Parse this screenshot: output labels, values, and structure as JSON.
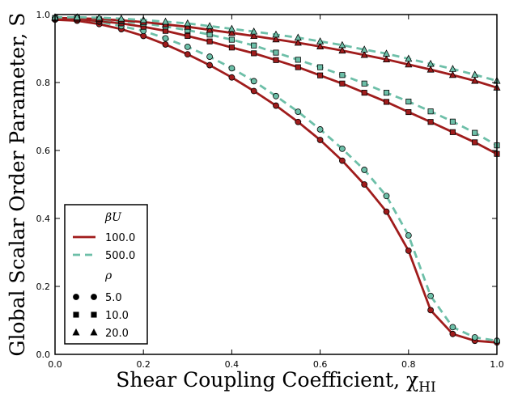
{
  "chart_data": {
    "type": "line",
    "xlabel": "Shear Coupling Coefficient, χ",
    "xlabel_sub": "HI",
    "ylabel": "Global Scalar Order Parameter, S",
    "xlim": [
      0.0,
      1.0
    ],
    "ylim": [
      0.0,
      1.0
    ],
    "xticks": [
      "0.0",
      "0.2",
      "0.4",
      "0.6",
      "0.8",
      "1.0"
    ],
    "yticks": [
      "0.0",
      "0.2",
      "0.4",
      "0.6",
      "0.8",
      "1.0"
    ],
    "grid": false,
    "legend_placement": "lower-left",
    "colors": {
      "betaU_100": "#a01c1c",
      "betaU_500": "#6dbfa8"
    },
    "legend": {
      "betaU_title": "βU",
      "betaU_entries": [
        "100.0",
        "500.0"
      ],
      "rho_title": "ρ",
      "rho_entries": [
        "5.0",
        "10.0",
        "20.0"
      ]
    },
    "x": [
      0.0,
      0.05,
      0.1,
      0.15,
      0.2,
      0.25,
      0.3,
      0.35,
      0.4,
      0.45,
      0.5,
      0.55,
      0.6,
      0.65,
      0.7,
      0.75,
      0.8,
      0.85,
      0.9,
      0.95,
      1.0
    ],
    "series": [
      {
        "betaU": "100.0",
        "rho": "5.0",
        "marker": "circle",
        "values": [
          0.985,
          0.982,
          0.972,
          0.957,
          0.937,
          0.912,
          0.883,
          0.851,
          0.815,
          0.775,
          0.732,
          0.684,
          0.631,
          0.57,
          0.5,
          0.42,
          0.305,
          0.13,
          0.06,
          0.04,
          0.035
        ]
      },
      {
        "betaU": "500.0",
        "rho": "5.0",
        "marker": "circle",
        "values": [
          0.99,
          0.987,
          0.979,
          0.966,
          0.952,
          0.93,
          0.905,
          0.876,
          0.842,
          0.804,
          0.76,
          0.714,
          0.662,
          0.605,
          0.543,
          0.466,
          0.35,
          0.172,
          0.08,
          0.05,
          0.04
        ]
      },
      {
        "betaU": "100.0",
        "rho": "10.0",
        "marker": "square",
        "values": [
          0.988,
          0.986,
          0.981,
          0.974,
          0.964,
          0.952,
          0.937,
          0.921,
          0.903,
          0.886,
          0.866,
          0.845,
          0.821,
          0.797,
          0.77,
          0.743,
          0.713,
          0.684,
          0.654,
          0.624,
          0.59
        ]
      },
      {
        "betaU": "500.0",
        "rho": "10.0",
        "marker": "square",
        "values": [
          0.99,
          0.989,
          0.986,
          0.98,
          0.974,
          0.965,
          0.954,
          0.941,
          0.926,
          0.909,
          0.888,
          0.867,
          0.845,
          0.822,
          0.797,
          0.77,
          0.744,
          0.715,
          0.685,
          0.652,
          0.615
        ]
      },
      {
        "betaU": "100.0",
        "rho": "20.0",
        "marker": "triangle",
        "values": [
          0.99,
          0.989,
          0.987,
          0.983,
          0.978,
          0.971,
          0.964,
          0.955,
          0.946,
          0.937,
          0.927,
          0.917,
          0.906,
          0.894,
          0.881,
          0.868,
          0.853,
          0.838,
          0.822,
          0.805,
          0.785
        ]
      },
      {
        "betaU": "500.0",
        "rho": "20.0",
        "marker": "triangle",
        "values": [
          0.992,
          0.992,
          0.991,
          0.988,
          0.984,
          0.979,
          0.974,
          0.966,
          0.958,
          0.95,
          0.941,
          0.932,
          0.921,
          0.91,
          0.897,
          0.885,
          0.87,
          0.855,
          0.84,
          0.823,
          0.805
        ]
      }
    ]
  }
}
